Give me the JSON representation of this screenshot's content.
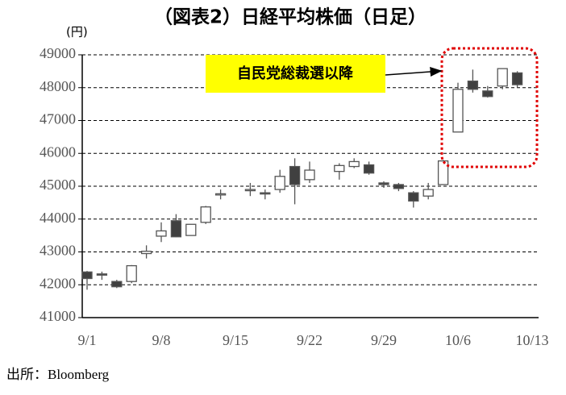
{
  "chart_data": {
    "type": "candlestick",
    "title": "（図表2）日経平均株価（日足）",
    "y_unit": "(円)",
    "source": "出所：Bloomberg",
    "annotation": "自民党総裁選以降",
    "categories": [
      "9/1",
      null,
      null,
      null,
      null,
      "9/8",
      null,
      null,
      null,
      null,
      "9/15",
      null,
      null,
      null,
      null,
      "9/22",
      null,
      null,
      null,
      null,
      "9/29",
      null,
      null,
      null,
      null,
      "10/6",
      null,
      null,
      null,
      null,
      "10/13"
    ],
    "open": [
      42390,
      42330,
      42100,
      42100,
      42950,
      43480,
      43950,
      43500,
      43900,
      44760,
      null,
      44880,
      44800,
      44900,
      45600,
      45200,
      null,
      45450,
      45600,
      45650,
      45100,
      45050,
      44800,
      44700,
      45050,
      46650,
      48200,
      47900,
      48050,
      48450,
      null
    ],
    "high": [
      42420,
      42400,
      42150,
      42600,
      43200,
      43900,
      44150,
      43850,
      44400,
      44900,
      null,
      45100,
      44900,
      45500,
      45850,
      45750,
      null,
      45700,
      45850,
      45750,
      45150,
      45100,
      44850,
      45100,
      45800,
      48150,
      48550,
      48050,
      48580,
      48500,
      null
    ],
    "low": [
      41850,
      42150,
      41900,
      42050,
      42800,
      43300,
      43450,
      43500,
      43850,
      44600,
      null,
      44700,
      44600,
      44800,
      44450,
      45100,
      null,
      45200,
      45550,
      45350,
      44950,
      44850,
      44350,
      44600,
      45050,
      46650,
      47850,
      47700,
      47950,
      48000,
      null
    ],
    "close": [
      42190,
      42310,
      41940,
      42580,
      43020,
      43640,
      43460,
      43840,
      44370,
      44770,
      null,
      44900,
      44790,
      45300,
      45050,
      45490,
      null,
      45630,
      45750,
      45400,
      45050,
      44930,
      44550,
      44900,
      45770,
      47950,
      47950,
      47730,
      48580,
      48090,
      null
    ],
    "up_color": "#ffffff",
    "down_color": "#404040",
    "edge_color": "#555555",
    "ylim": [
      41000,
      49000
    ],
    "yticks": [
      41000,
      42000,
      43000,
      44000,
      45000,
      46000,
      47000,
      48000,
      49000
    ],
    "grid": true
  }
}
